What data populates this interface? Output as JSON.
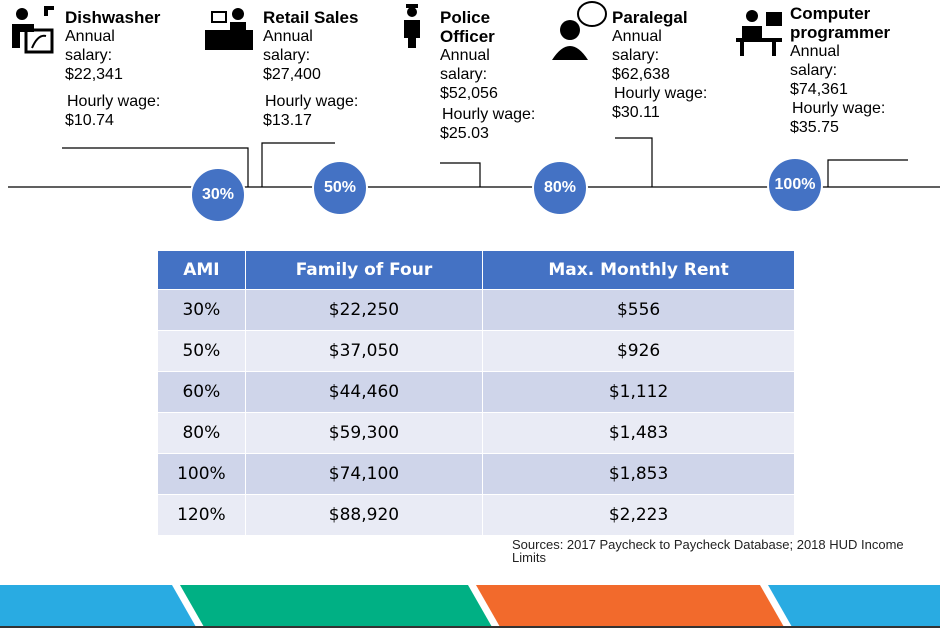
{
  "occupations": [
    {
      "title": "Dishwasher",
      "salary_label": "Annual salary:",
      "salary": "$22,341",
      "wage_label": "Hourly wage:",
      "wage": "$10.74"
    },
    {
      "title": "Retail Sales",
      "salary_label": "Annual salary:",
      "salary": "$27,400",
      "wage_label": "Hourly wage:",
      "wage": "$13.17"
    },
    {
      "title": "Police Officer",
      "salary_label": "Annual salary:",
      "salary": "$52,056",
      "wage_label": "Hourly wage:",
      "wage": "$25.03"
    },
    {
      "title": "Paralegal",
      "salary_label": "Annual salary:",
      "salary": "$62,638",
      "wage_label": "Hourly wage:",
      "wage": "$30.11"
    },
    {
      "title": "Computer programmer",
      "salary_label": "Annual salary:",
      "salary": "$74,361",
      "wage_label": "Hourly wage:",
      "wage": "$35.75"
    }
  ],
  "markers": [
    "30%",
    "50%",
    "80%",
    "100%"
  ],
  "table": {
    "header": [
      "AMI",
      "Family of Four",
      "Max. Monthly Rent"
    ],
    "rows": [
      [
        "30%",
        "$22,250",
        "$556"
      ],
      [
        "50%",
        "$37,050",
        "$926"
      ],
      [
        "60%",
        "$44,460",
        "$1,112"
      ],
      [
        "80%",
        "$59,300",
        "$1,483"
      ],
      [
        "100%",
        "$74,100",
        "$1,853"
      ],
      [
        "120%",
        "$88,920",
        "$2,223"
      ]
    ]
  },
  "source": "Sources: 2017 Paycheck to Paycheck Database; 2018 HUD Income Limits"
}
